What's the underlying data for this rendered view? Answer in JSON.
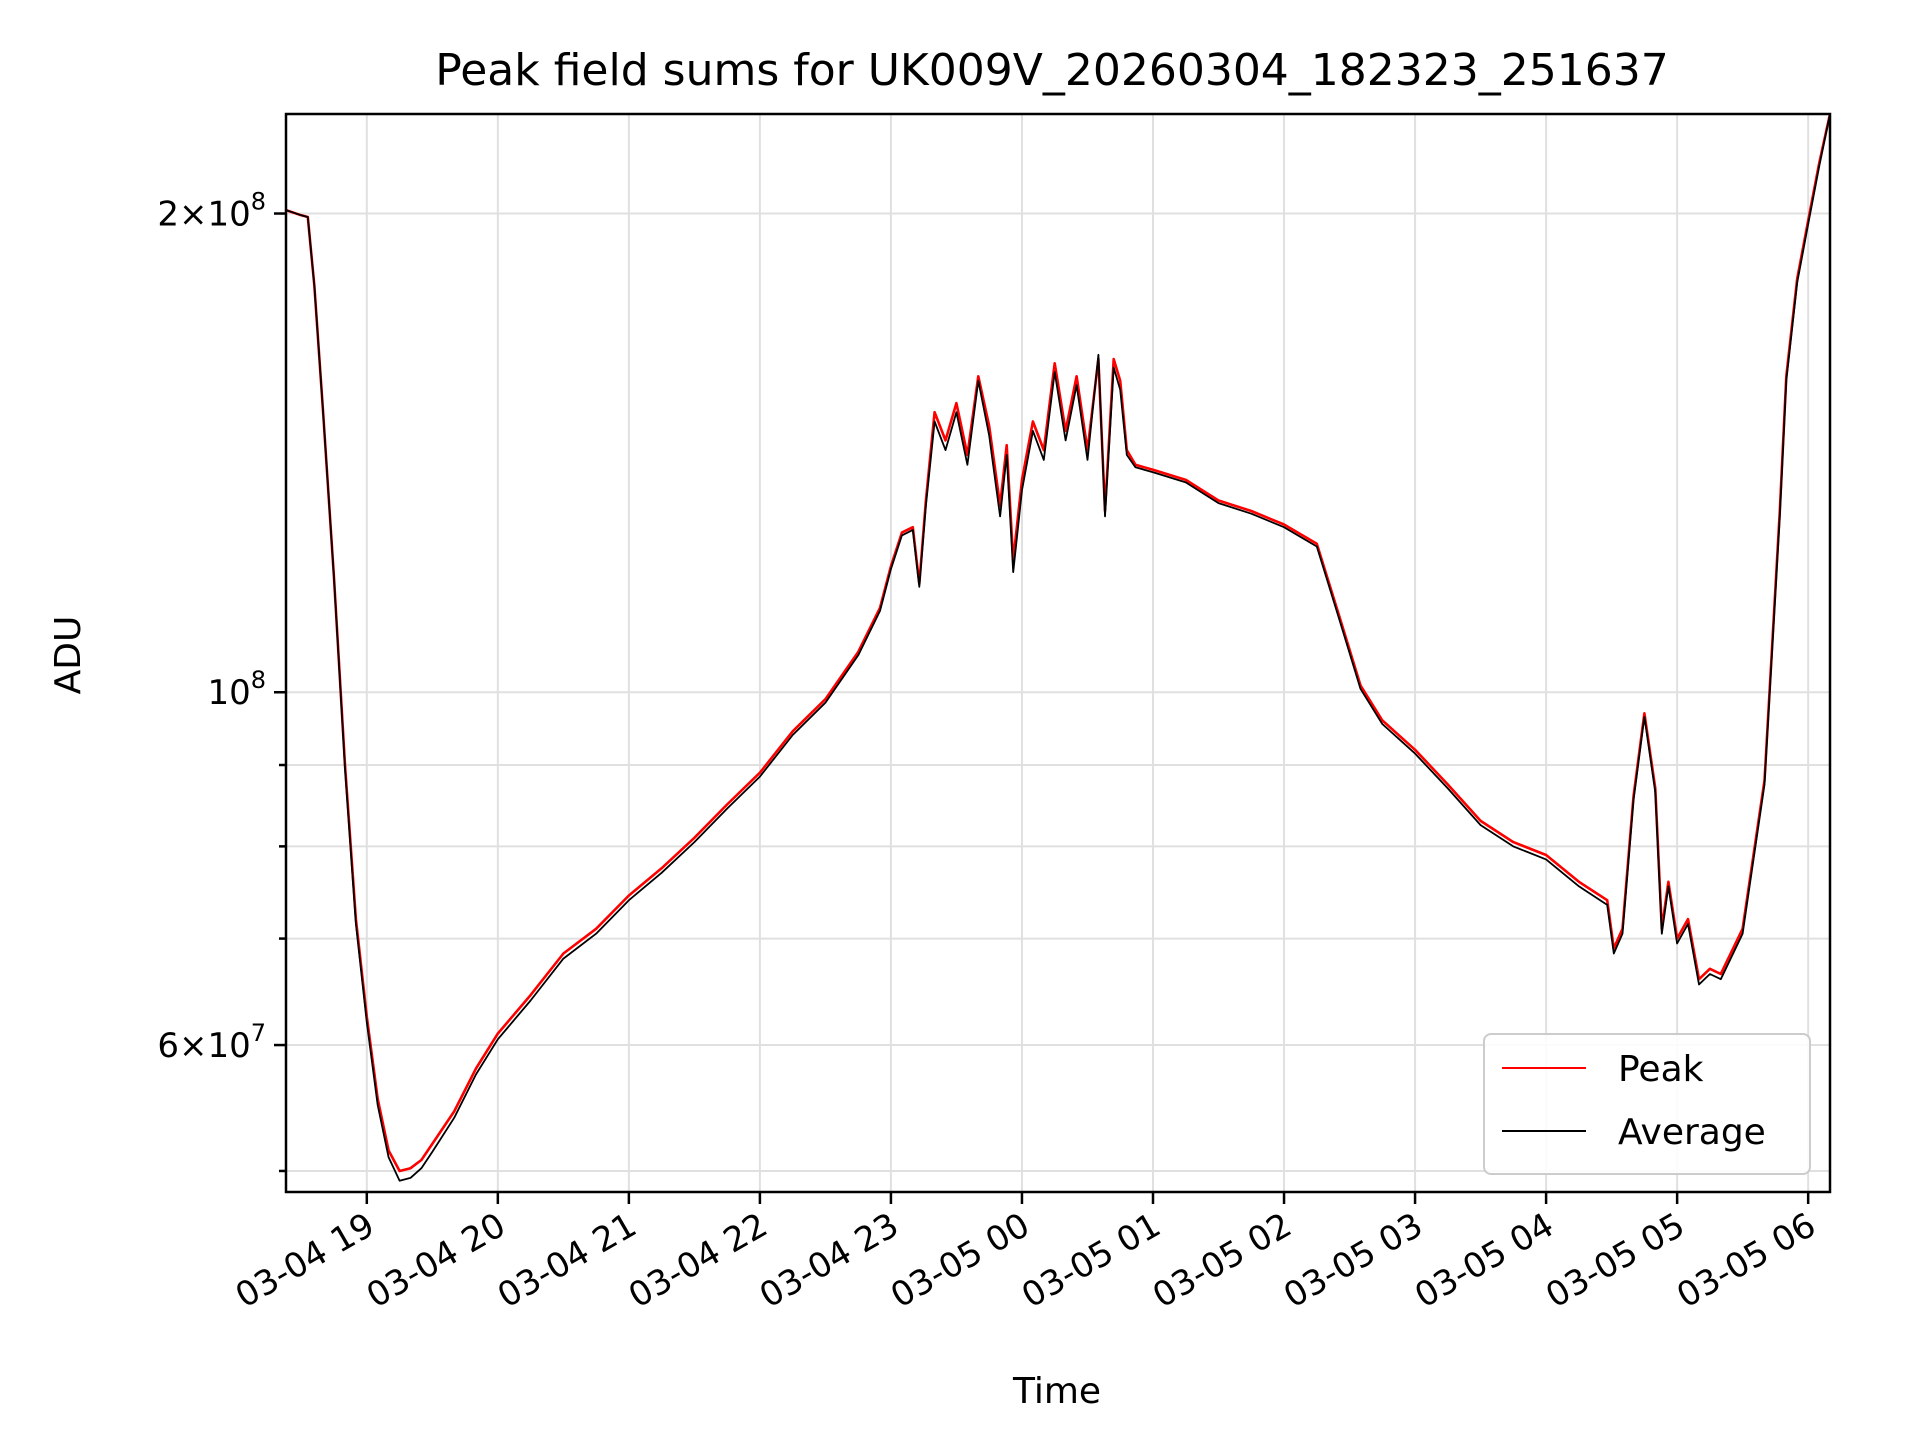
{
  "chart_data": {
    "type": "line",
    "title": "Peak field sums for UK009V_20260304_182323_251637",
    "xlabel": "Time",
    "ylabel": "ADU",
    "yscale": "log",
    "grid": true,
    "legend_position": "lower-right",
    "xlim": [
      "2026-03-04 18:23",
      "2026-03-05 06:10"
    ],
    "ylim": [
      48500000,
      231000000
    ],
    "x_ticks": [
      {
        "value": "2026-03-04 19:00",
        "label": "03-04 19"
      },
      {
        "value": "2026-03-04 20:00",
        "label": "03-04 20"
      },
      {
        "value": "2026-03-04 21:00",
        "label": "03-04 21"
      },
      {
        "value": "2026-03-04 22:00",
        "label": "03-04 22"
      },
      {
        "value": "2026-03-04 23:00",
        "label": "03-04 23"
      },
      {
        "value": "2026-03-05 00:00",
        "label": "03-05 00"
      },
      {
        "value": "2026-03-05 01:00",
        "label": "03-05 01"
      },
      {
        "value": "2026-03-05 02:00",
        "label": "03-05 02"
      },
      {
        "value": "2026-03-05 03:00",
        "label": "03-05 03"
      },
      {
        "value": "2026-03-05 04:00",
        "label": "03-05 04"
      },
      {
        "value": "2026-03-05 05:00",
        "label": "03-05 05"
      },
      {
        "value": "2026-03-05 06:00",
        "label": "03-05 06"
      }
    ],
    "y_major_ticks": [
      {
        "value": 60000000,
        "label_mantissa": "6",
        "label_base": "10",
        "label_exp": "7"
      },
      {
        "value": 100000000,
        "label_mantissa": "",
        "label_base": "10",
        "label_exp": "8"
      },
      {
        "value": 200000000,
        "label_mantissa": "2",
        "label_base": "10",
        "label_exp": "8"
      }
    ],
    "y_minor_ticks": [
      50000000,
      70000000,
      80000000,
      90000000
    ],
    "series": [
      {
        "name": "Peak",
        "color": "#ff0000",
        "points": [
          [
            "2026-03-04 18:23",
            201000000
          ],
          [
            "2026-03-04 18:30",
            199500000
          ],
          [
            "2026-03-04 18:33",
            199000000
          ],
          [
            "2026-03-04 18:36",
            180000000
          ],
          [
            "2026-03-04 18:40",
            150000000
          ],
          [
            "2026-03-04 18:45",
            118000000
          ],
          [
            "2026-03-04 18:50",
            90000000
          ],
          [
            "2026-03-04 18:55",
            72000000
          ],
          [
            "2026-03-04 19:00",
            62500000
          ],
          [
            "2026-03-04 19:05",
            55500000
          ],
          [
            "2026-03-04 19:10",
            51500000
          ],
          [
            "2026-03-04 19:15",
            50000000
          ],
          [
            "2026-03-04 19:20",
            50200000
          ],
          [
            "2026-03-04 19:25",
            50800000
          ],
          [
            "2026-03-04 19:30",
            52000000
          ],
          [
            "2026-03-04 19:40",
            54500000
          ],
          [
            "2026-03-04 19:50",
            58000000
          ],
          [
            "2026-03-04 20:00",
            61000000
          ],
          [
            "2026-03-04 20:15",
            64500000
          ],
          [
            "2026-03-04 20:30",
            68500000
          ],
          [
            "2026-03-04 20:45",
            71000000
          ],
          [
            "2026-03-04 21:00",
            74500000
          ],
          [
            "2026-03-04 21:15",
            77500000
          ],
          [
            "2026-03-04 21:30",
            81000000
          ],
          [
            "2026-03-04 21:45",
            85000000
          ],
          [
            "2026-03-04 22:00",
            89000000
          ],
          [
            "2026-03-04 22:15",
            94500000
          ],
          [
            "2026-03-04 22:30",
            99000000
          ],
          [
            "2026-03-04 22:45",
            106000000
          ],
          [
            "2026-03-04 22:55",
            113000000
          ],
          [
            "2026-03-04 23:00",
            120000000
          ],
          [
            "2026-03-04 23:05",
            126000000
          ],
          [
            "2026-03-04 23:10",
            127000000
          ],
          [
            "2026-03-04 23:13",
            117000000
          ],
          [
            "2026-03-04 23:16",
            132000000
          ],
          [
            "2026-03-04 23:20",
            150000000
          ],
          [
            "2026-03-04 23:25",
            144000000
          ],
          [
            "2026-03-04 23:30",
            152000000
          ],
          [
            "2026-03-04 23:35",
            141000000
          ],
          [
            "2026-03-04 23:40",
            158000000
          ],
          [
            "2026-03-04 23:45",
            147000000
          ],
          [
            "2026-03-04 23:50",
            131000000
          ],
          [
            "2026-03-04 23:53",
            143000000
          ],
          [
            "2026-03-04 23:56",
            121000000
          ],
          [
            "2026-03-05 00:00",
            136000000
          ],
          [
            "2026-03-05 00:05",
            148000000
          ],
          [
            "2026-03-05 00:10",
            142000000
          ],
          [
            "2026-03-05 00:15",
            161000000
          ],
          [
            "2026-03-05 00:20",
            146000000
          ],
          [
            "2026-03-05 00:25",
            158000000
          ],
          [
            "2026-03-05 00:30",
            142000000
          ],
          [
            "2026-03-05 00:35",
            162000000
          ],
          [
            "2026-03-05 00:38",
            130000000
          ],
          [
            "2026-03-05 00:42",
            162000000
          ],
          [
            "2026-03-05 00:45",
            157000000
          ],
          [
            "2026-03-05 00:48",
            142000000
          ],
          [
            "2026-03-05 00:52",
            139000000
          ],
          [
            "2026-03-05 01:00",
            138000000
          ],
          [
            "2026-03-05 01:15",
            136000000
          ],
          [
            "2026-03-05 01:30",
            132000000
          ],
          [
            "2026-03-05 01:45",
            130000000
          ],
          [
            "2026-03-05 02:00",
            127500000
          ],
          [
            "2026-03-05 02:15",
            124000000
          ],
          [
            "2026-03-05 02:25",
            112000000
          ],
          [
            "2026-03-05 02:35",
            101000000
          ],
          [
            "2026-03-05 02:45",
            96000000
          ],
          [
            "2026-03-05 03:00",
            92000000
          ],
          [
            "2026-03-05 03:15",
            87500000
          ],
          [
            "2026-03-05 03:30",
            83000000
          ],
          [
            "2026-03-05 03:45",
            80500000
          ],
          [
            "2026-03-05 04:00",
            79000000
          ],
          [
            "2026-03-05 04:15",
            76000000
          ],
          [
            "2026-03-05 04:28",
            74000000
          ],
          [
            "2026-03-05 04:31",
            69000000
          ],
          [
            "2026-03-05 04:35",
            71000000
          ],
          [
            "2026-03-05 04:40",
            86000000
          ],
          [
            "2026-03-05 04:45",
            97000000
          ],
          [
            "2026-03-05 04:50",
            87000000
          ],
          [
            "2026-03-05 04:53",
            71000000
          ],
          [
            "2026-03-05 04:56",
            76000000
          ],
          [
            "2026-03-05 05:00",
            70000000
          ],
          [
            "2026-03-05 05:05",
            72000000
          ],
          [
            "2026-03-05 05:10",
            66000000
          ],
          [
            "2026-03-05 05:15",
            67000000
          ],
          [
            "2026-03-05 05:20",
            66500000
          ],
          [
            "2026-03-05 05:30",
            71000000
          ],
          [
            "2026-03-05 05:40",
            88000000
          ],
          [
            "2026-03-05 05:47",
            130000000
          ],
          [
            "2026-03-05 05:50",
            158000000
          ],
          [
            "2026-03-05 05:55",
            182000000
          ],
          [
            "2026-03-05 06:00",
            198000000
          ],
          [
            "2026-03-05 06:05",
            215000000
          ],
          [
            "2026-03-05 06:10",
            231000000
          ]
        ]
      },
      {
        "name": "Average",
        "color": "#000000",
        "points": [
          [
            "2026-03-04 18:23",
            201000000
          ],
          [
            "2026-03-04 18:30",
            199500000
          ],
          [
            "2026-03-04 18:33",
            199000000
          ],
          [
            "2026-03-04 18:36",
            180000000
          ],
          [
            "2026-03-04 18:40",
            150000000
          ],
          [
            "2026-03-04 18:45",
            118000000
          ],
          [
            "2026-03-04 18:50",
            89500000
          ],
          [
            "2026-03-04 18:55",
            71500000
          ],
          [
            "2026-03-04 19:00",
            62000000
          ],
          [
            "2026-03-04 19:05",
            55000000
          ],
          [
            "2026-03-04 19:10",
            51000000
          ],
          [
            "2026-03-04 19:15",
            49300000
          ],
          [
            "2026-03-04 19:20",
            49500000
          ],
          [
            "2026-03-04 19:25",
            50200000
          ],
          [
            "2026-03-04 19:30",
            51400000
          ],
          [
            "2026-03-04 19:40",
            54000000
          ],
          [
            "2026-03-04 19:50",
            57500000
          ],
          [
            "2026-03-04 20:00",
            60500000
          ],
          [
            "2026-03-04 20:15",
            64000000
          ],
          [
            "2026-03-04 20:30",
            68000000
          ],
          [
            "2026-03-04 20:45",
            70500000
          ],
          [
            "2026-03-04 21:00",
            74000000
          ],
          [
            "2026-03-04 21:15",
            77000000
          ],
          [
            "2026-03-04 21:30",
            80500000
          ],
          [
            "2026-03-04 21:45",
            84500000
          ],
          [
            "2026-03-04 22:00",
            88500000
          ],
          [
            "2026-03-04 22:15",
            94000000
          ],
          [
            "2026-03-04 22:30",
            98500000
          ],
          [
            "2026-03-04 22:45",
            105500000
          ],
          [
            "2026-03-04 22:55",
            112500000
          ],
          [
            "2026-03-04 23:00",
            119500000
          ],
          [
            "2026-03-04 23:05",
            125500000
          ],
          [
            "2026-03-04 23:10",
            126500000
          ],
          [
            "2026-03-04 23:13",
            116500000
          ],
          [
            "2026-03-04 23:16",
            131000000
          ],
          [
            "2026-03-04 23:20",
            148000000
          ],
          [
            "2026-03-04 23:25",
            142000000
          ],
          [
            "2026-03-04 23:30",
            150000000
          ],
          [
            "2026-03-04 23:35",
            139000000
          ],
          [
            "2026-03-04 23:40",
            157000000
          ],
          [
            "2026-03-04 23:45",
            145000000
          ],
          [
            "2026-03-04 23:50",
            129000000
          ],
          [
            "2026-03-04 23:53",
            141000000
          ],
          [
            "2026-03-04 23:56",
            119000000
          ],
          [
            "2026-03-05 00:00",
            134000000
          ],
          [
            "2026-03-05 00:05",
            146000000
          ],
          [
            "2026-03-05 00:10",
            140000000
          ],
          [
            "2026-03-05 00:15",
            159000000
          ],
          [
            "2026-03-05 00:20",
            144000000
          ],
          [
            "2026-03-05 00:25",
            156000000
          ],
          [
            "2026-03-05 00:30",
            140000000
          ],
          [
            "2026-03-05 00:35",
            163000000
          ],
          [
            "2026-03-05 00:38",
            129000000
          ],
          [
            "2026-03-05 00:42",
            160000000
          ],
          [
            "2026-03-05 00:45",
            155000000
          ],
          [
            "2026-03-05 00:48",
            141000000
          ],
          [
            "2026-03-05 00:52",
            138500000
          ],
          [
            "2026-03-05 01:00",
            137500000
          ],
          [
            "2026-03-05 01:15",
            135500000
          ],
          [
            "2026-03-05 01:30",
            131500000
          ],
          [
            "2026-03-05 01:45",
            129500000
          ],
          [
            "2026-03-05 02:00",
            127000000
          ],
          [
            "2026-03-05 02:15",
            123500000
          ],
          [
            "2026-03-05 02:25",
            111500000
          ],
          [
            "2026-03-05 02:35",
            100500000
          ],
          [
            "2026-03-05 02:45",
            95500000
          ],
          [
            "2026-03-05 03:00",
            91500000
          ],
          [
            "2026-03-05 03:15",
            87000000
          ],
          [
            "2026-03-05 03:30",
            82500000
          ],
          [
            "2026-03-05 03:45",
            80000000
          ],
          [
            "2026-03-05 04:00",
            78500000
          ],
          [
            "2026-03-05 04:15",
            75500000
          ],
          [
            "2026-03-05 04:28",
            73500000
          ],
          [
            "2026-03-05 04:31",
            68500000
          ],
          [
            "2026-03-05 04:35",
            70500000
          ],
          [
            "2026-03-05 04:40",
            85500000
          ],
          [
            "2026-03-05 04:45",
            96500000
          ],
          [
            "2026-03-05 04:50",
            86500000
          ],
          [
            "2026-03-05 04:53",
            70500000
          ],
          [
            "2026-03-05 04:56",
            75500000
          ],
          [
            "2026-03-05 05:00",
            69500000
          ],
          [
            "2026-03-05 05:05",
            71500000
          ],
          [
            "2026-03-05 05:10",
            65500000
          ],
          [
            "2026-03-05 05:15",
            66500000
          ],
          [
            "2026-03-05 05:20",
            66000000
          ],
          [
            "2026-03-05 05:30",
            70500000
          ],
          [
            "2026-03-05 05:40",
            87500000
          ],
          [
            "2026-03-05 05:47",
            129000000
          ],
          [
            "2026-03-05 05:50",
            157000000
          ],
          [
            "2026-03-05 05:55",
            181000000
          ],
          [
            "2026-03-05 06:00",
            197000000
          ],
          [
            "2026-03-05 06:05",
            214000000
          ],
          [
            "2026-03-05 06:10",
            231000000
          ]
        ]
      }
    ]
  }
}
